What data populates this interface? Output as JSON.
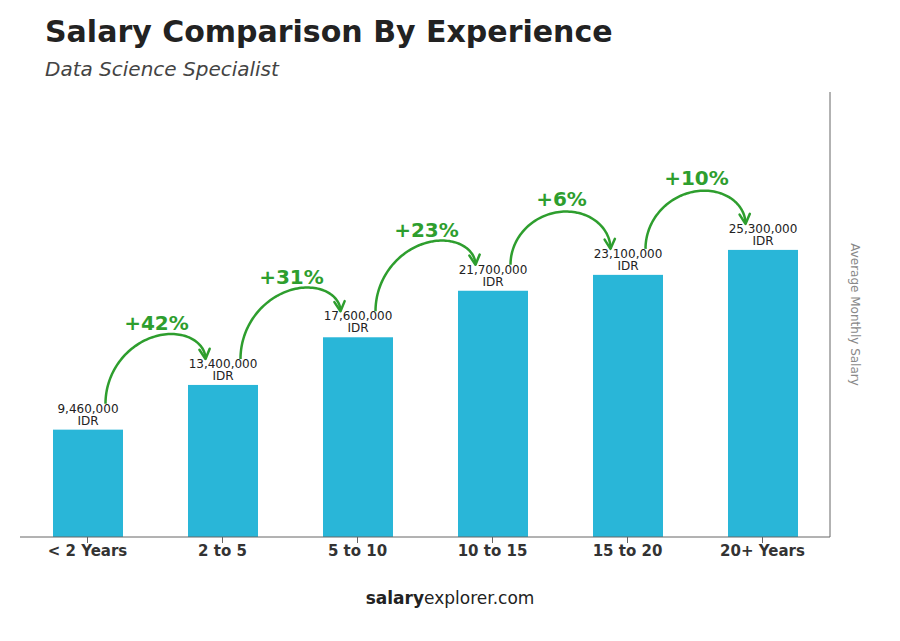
{
  "chart_data": {
    "type": "bar",
    "title": "Salary Comparison By Experience",
    "subtitle": "Data Science Specialist",
    "ylabel": "Average Monthly Salary",
    "footer": [
      "salary",
      "explorer.com"
    ],
    "categories": [
      "< 2 Years",
      "2 to 5",
      "5 to 10",
      "10 to 15",
      "15 to 20",
      "20+ Years"
    ],
    "values": [
      9460000,
      13400000,
      17600000,
      21700000,
      23100000,
      25300000
    ],
    "value_labels": [
      "9,460,000 IDR",
      "13,400,000 IDR",
      "17,600,000 IDR",
      "21,700,000 IDR",
      "23,100,000 IDR",
      "25,300,000 IDR"
    ],
    "annotations": [
      "+42%",
      "+31%",
      "+23%",
      "+6%",
      "+10%"
    ],
    "color": "#29b6d8",
    "ylim": [
      0,
      39215000
    ],
    "grid": false,
    "data_labels": true,
    "tick_labels": "x"
  }
}
